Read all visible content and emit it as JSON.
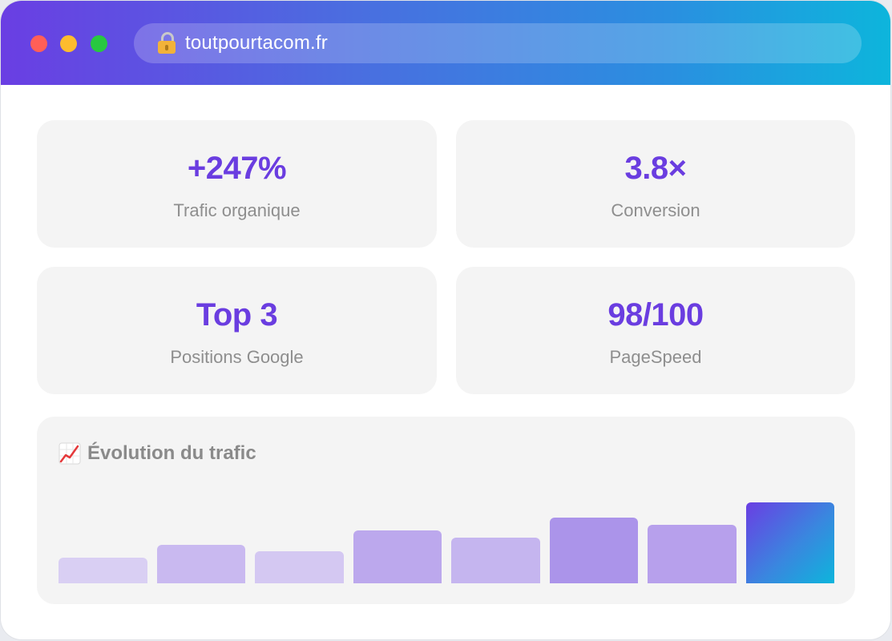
{
  "browser": {
    "url": "toutpourtacom.fr"
  },
  "stats": [
    {
      "value": "+247%",
      "label": "Trafic organique"
    },
    {
      "value": "3.8×",
      "label": "Conversion"
    },
    {
      "value": "Top 3",
      "label": "Positions Google"
    },
    {
      "value": "98/100",
      "label": "PageSpeed"
    }
  ],
  "colors": {
    "accent": "#6a3de0",
    "gradient_start": "#6a3ee3",
    "gradient_end": "#0db5dc"
  },
  "chart_data": {
    "type": "bar",
    "title": "Évolution du trafic",
    "icon": "chart-increasing-icon",
    "categories": [
      "",
      "",
      "",
      "",
      "",
      "",
      "",
      ""
    ],
    "values": [
      32,
      48,
      40,
      66,
      57,
      82,
      73,
      101
    ],
    "ylim": [
      0,
      110
    ],
    "grid": false,
    "legend": "none"
  }
}
